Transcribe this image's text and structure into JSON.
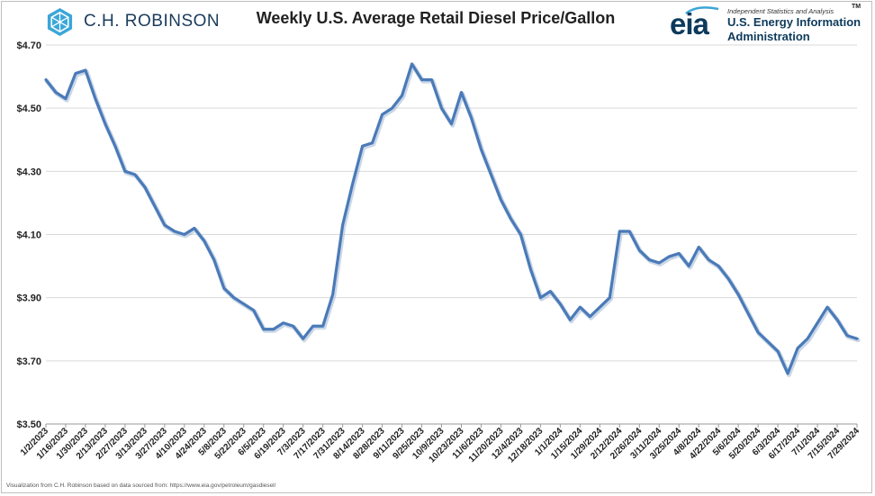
{
  "brand_left": {
    "name": "C.H. ROBINSON",
    "icon": "chr-hexagon-logo-icon",
    "color": "#1a3b5c"
  },
  "brand_right": {
    "word": "eia",
    "tagline": "Independent Statistics and Analysis",
    "line1": "U.S. Energy Information",
    "line2": "Administration",
    "tm": "TM",
    "color": "#0d3a5c"
  },
  "source_note": "Visualization from C.H. Robinson based on data sourced from: https://www.eia.gov/petroleum/gasdiesel/",
  "chart_data": {
    "type": "line",
    "title": "Weekly U.S. Average Retail Diesel Price/Gallon",
    "xlabel": "",
    "ylabel": "",
    "ylim": [
      3.5,
      4.7
    ],
    "yticks": [
      3.5,
      3.7,
      3.9,
      4.1,
      4.3,
      4.5,
      4.7
    ],
    "ytick_labels": [
      "$3.50",
      "$3.70",
      "$3.90",
      "$4.10",
      "$4.30",
      "$4.50",
      "$4.70"
    ],
    "grid": "horizontal",
    "line_color": "#4a7ab8",
    "xtick_labels": [
      "1/2/2023",
      "1/16/2023",
      "1/30/2023",
      "2/13/2023",
      "2/27/2023",
      "3/13/2023",
      "3/27/2023",
      "4/10/2023",
      "4/24/2023",
      "5/8/2023",
      "5/22/2023",
      "6/5/2023",
      "6/19/2023",
      "7/3/2023",
      "7/17/2023",
      "7/31/2023",
      "8/14/2023",
      "8/28/2023",
      "9/11/2023",
      "9/25/2023",
      "10/9/2023",
      "10/23/2023",
      "11/6/2023",
      "11/20/2023",
      "12/4/2023",
      "12/18/2023",
      "1/1/2024",
      "1/15/2024",
      "1/29/2024",
      "2/12/2024",
      "2/26/2024",
      "3/11/2024",
      "3/25/2024",
      "4/8/2024",
      "4/22/2024",
      "5/6/2024",
      "5/20/2024",
      "6/3/2024",
      "6/17/2024",
      "7/1/2024",
      "7/15/2024",
      "7/29/2024"
    ],
    "series": [
      {
        "values": [
          4.59,
          4.55,
          4.53,
          4.61,
          4.62,
          4.53,
          4.45,
          4.38,
          4.3,
          4.29,
          4.25,
          4.19,
          4.13,
          4.11,
          4.1,
          4.12,
          4.08,
          4.02,
          3.93,
          3.9,
          3.88,
          3.86,
          3.8,
          3.8,
          3.82,
          3.81,
          3.77,
          3.81,
          3.81,
          3.91,
          4.13,
          4.26,
          4.38,
          4.39,
          4.48,
          4.5,
          4.54,
          4.64,
          4.59,
          4.59,
          4.5,
          4.45,
          4.55,
          4.47,
          4.37,
          4.29,
          4.21,
          4.15,
          4.1,
          3.99,
          3.9,
          3.92,
          3.88,
          3.83,
          3.87,
          3.84,
          3.87,
          3.9,
          4.11,
          4.11,
          4.05,
          4.02,
          4.01,
          4.03,
          4.04,
          4.0,
          4.06,
          4.02,
          4.0,
          3.96,
          3.91,
          3.85,
          3.79,
          3.76,
          3.73,
          3.66,
          3.74,
          3.77,
          3.82,
          3.87,
          3.83,
          3.78,
          3.77
        ]
      }
    ]
  }
}
